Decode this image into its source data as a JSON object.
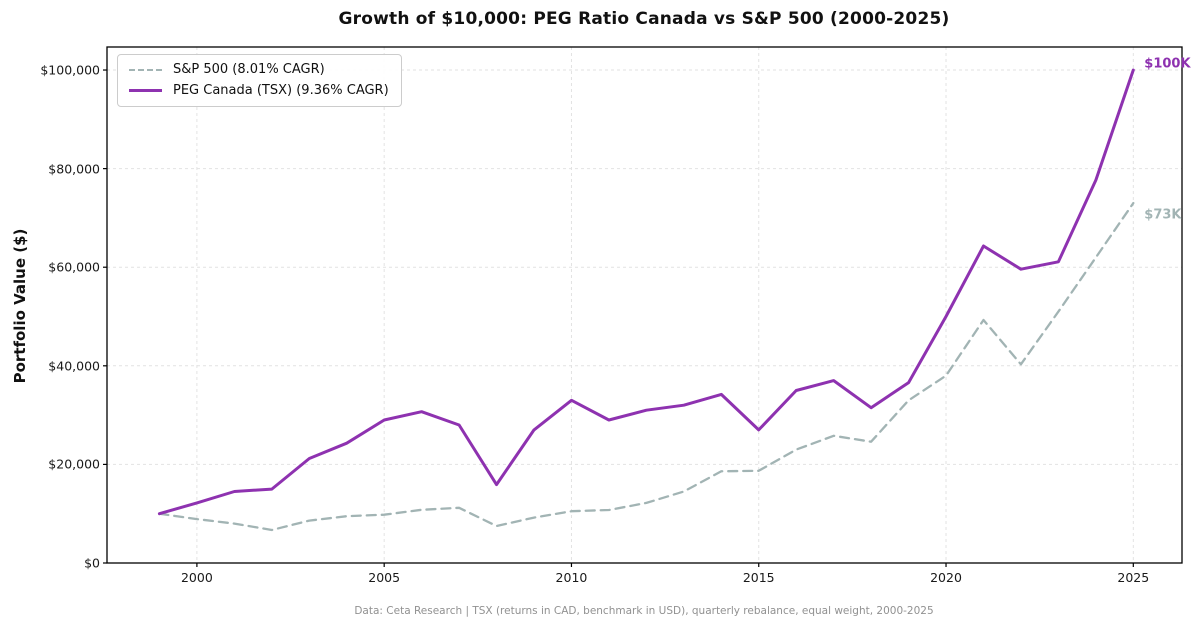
{
  "page": {
    "background": "#ffffff"
  },
  "chart_data": {
    "type": "line",
    "title": "Growth of $10,000: PEG Ratio Canada vs S&P 500 (2000-2025)",
    "ylabel": "Portfolio Value ($)",
    "caption": "Data: Ceta Research | TSX (returns in CAD, benchmark in USD), quarterly rebalance, equal weight, 2000-2025",
    "grid": true,
    "legend_position": "upper-left",
    "x": [
      1999,
      2000,
      2001,
      2002,
      2003,
      2004,
      2005,
      2006,
      2007,
      2008,
      2009,
      2010,
      2011,
      2012,
      2013,
      2014,
      2015,
      2016,
      2017,
      2018,
      2019,
      2020,
      2021,
      2022,
      2023,
      2024,
      2025
    ],
    "x_ticks": [
      2000,
      2005,
      2010,
      2015,
      2020,
      2025
    ],
    "y_ticks": [
      {
        "value": 0,
        "label": "$0"
      },
      {
        "value": 20000,
        "label": "$20,000"
      },
      {
        "value": 40000,
        "label": "$40,000"
      },
      {
        "value": 60000,
        "label": "$60,000"
      },
      {
        "value": 80000,
        "label": "$80,000"
      },
      {
        "value": 100000,
        "label": "$100,000"
      }
    ],
    "xlim": [
      1997.6,
      2026.3
    ],
    "ylim": [
      0,
      104670
    ],
    "colors": {
      "grid": "#e2e2e2",
      "spine": "#000000",
      "caption": "#919191"
    },
    "series": [
      {
        "name": "S&P 500 (8.01% CAGR)",
        "color": "#a2b4b4",
        "line_style": "dashed",
        "line_width": 2.3,
        "end_label": "$73K",
        "values": [
          10000,
          8900,
          8000,
          6700,
          8600,
          9500,
          9800,
          10800,
          11200,
          7500,
          9200,
          10500,
          10750,
          12200,
          14500,
          18600,
          18700,
          23000,
          25800,
          24600,
          33000,
          38000,
          49300,
          40300,
          51000,
          62000,
          73000
        ]
      },
      {
        "name": "PEG Canada (TSX) (9.36% CAGR)",
        "color": "#8e32b0",
        "line_style": "solid",
        "line_width": 3,
        "end_label": "$100K",
        "values": [
          10000,
          12200,
          14500,
          15000,
          21200,
          24300,
          29000,
          30700,
          28000,
          15900,
          27000,
          33000,
          29000,
          31000,
          32000,
          34200,
          27000,
          35000,
          37000,
          31500,
          36600,
          50000,
          64300,
          59600,
          61100,
          77700,
          100000
        ]
      }
    ]
  }
}
